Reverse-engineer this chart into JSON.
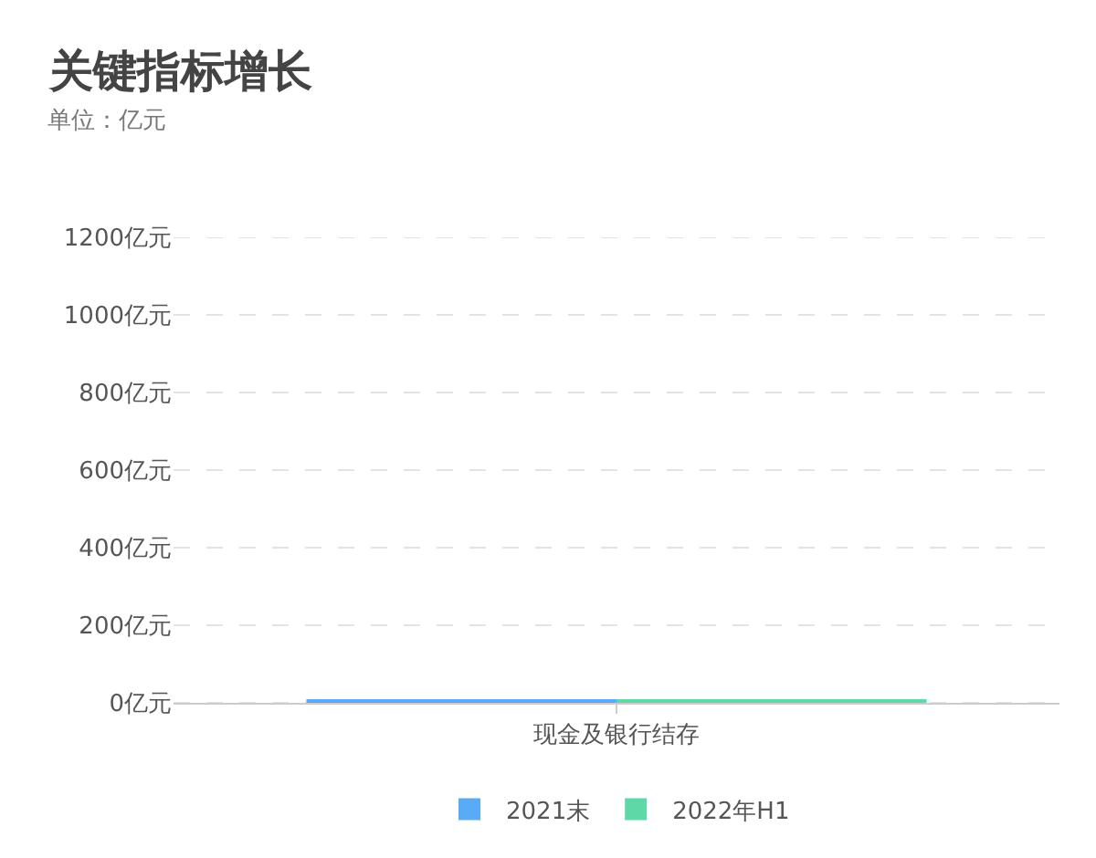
{
  "chart_data": {
    "type": "bar",
    "title": "关键指标增长",
    "subtitle": "单位：亿元",
    "categories": [
      "现金及银行结存"
    ],
    "series": [
      {
        "name": "2021末",
        "color": "#5aabf5",
        "values": [
          5
        ]
      },
      {
        "name": "2022年H1",
        "color": "#5fd8a8",
        "values": [
          5
        ]
      }
    ],
    "ylim": [
      0,
      1200
    ],
    "yticks": [
      {
        "value": 0,
        "label": "0亿元"
      },
      {
        "value": 200,
        "label": "200亿元"
      },
      {
        "value": 400,
        "label": "400亿元"
      },
      {
        "value": 600,
        "label": "600亿元"
      },
      {
        "value": 800,
        "label": "800亿元"
      },
      {
        "value": 1000,
        "label": "1000亿元"
      },
      {
        "value": 1200,
        "label": "1200亿元"
      }
    ],
    "grid": "y",
    "legend": "bottom"
  }
}
